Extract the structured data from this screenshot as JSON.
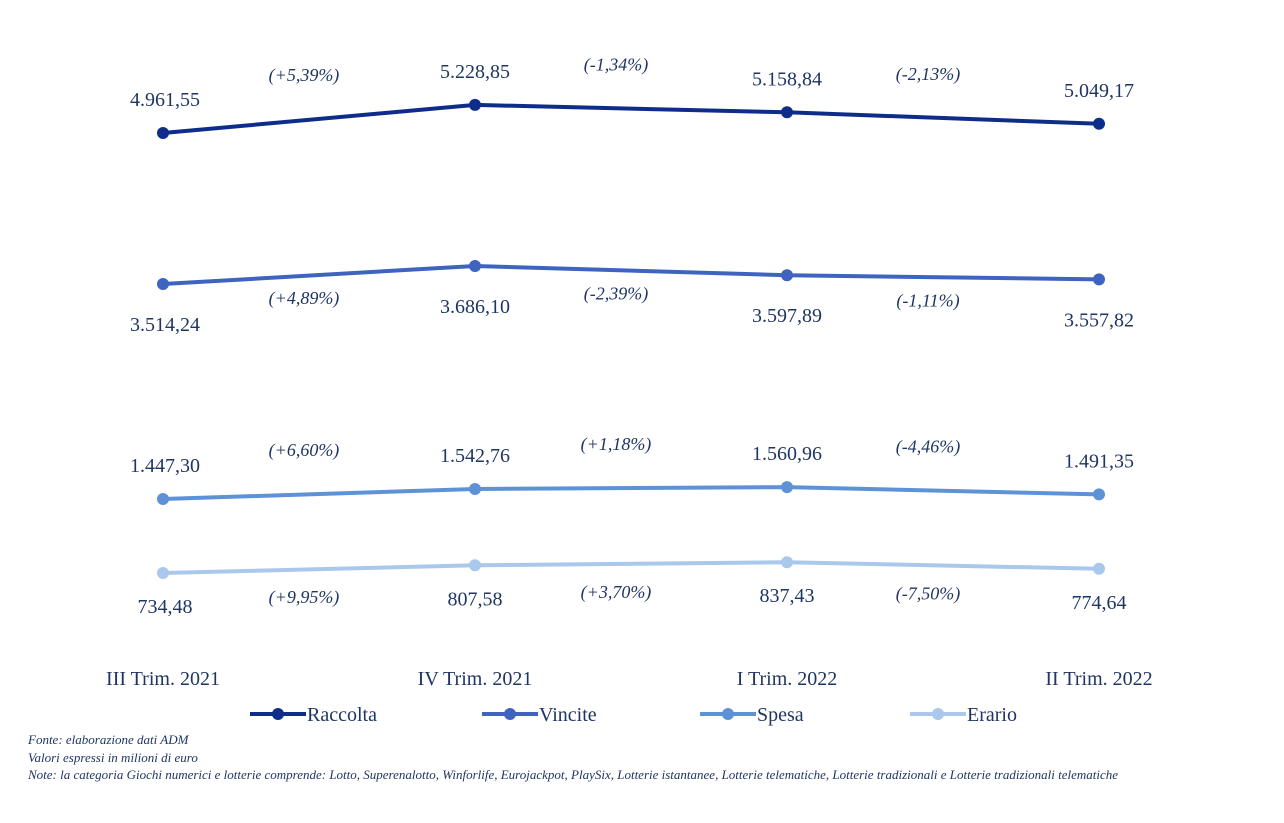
{
  "chart_data": {
    "type": "line",
    "categories": [
      "III Trim. 2021",
      "IV Trim. 2021",
      "I Trim. 2022",
      "II Trim. 2022"
    ],
    "series": [
      {
        "name": "Raccolta",
        "color": "#0e2d8a",
        "values": [
          4961.55,
          5228.85,
          5158.84,
          5049.17
        ],
        "value_labels": [
          "4.961,55",
          "5.228,85",
          "5.158,84",
          "5.049,17"
        ],
        "changes": [
          "(+5,39%)",
          "(-1,34%)",
          "(-2,13%)"
        ]
      },
      {
        "name": "Vincite",
        "color": "#3e64c0",
        "values": [
          3514.24,
          3686.1,
          3597.89,
          3557.82
        ],
        "value_labels": [
          "3.514,24",
          "3.686,10",
          "3.597,89",
          "3.557,82"
        ],
        "changes": [
          "(+4,89%)",
          "(-2,39%)",
          "(-1,11%)"
        ]
      },
      {
        "name": "Spesa",
        "color": "#5d93d6",
        "values": [
          1447.3,
          1542.76,
          1560.96,
          1491.35
        ],
        "value_labels": [
          "1.447,30",
          "1.542,76",
          "1.560,96",
          "1.491,35"
        ],
        "changes": [
          "(+6,60%)",
          "(+1,18%)",
          "(-4,46%)"
        ]
      },
      {
        "name": "Erario",
        "color": "#a9c8ec",
        "values": [
          734.48,
          807.58,
          837.43,
          774.64
        ],
        "value_labels": [
          "734,48",
          "807,58",
          "837,43",
          "774,64"
        ],
        "changes": [
          "(+9,95%)",
          "(+3,70%)",
          "(-7,50%)"
        ]
      }
    ],
    "legend_position": "bottom",
    "grid": false
  },
  "notes": {
    "source": "Fonte: elaborazione dati ADM",
    "units": "Valori espressi in milioni di euro",
    "note": "Note: la categoria Giochi numerici e lotterie comprende: Lotto, Superenalotto, Winforlife, Eurojackpot, PlaySix, Lotterie istantanee, Lotterie telematiche, Lotterie tradizionali e Lotterie tradizionali telematiche"
  }
}
